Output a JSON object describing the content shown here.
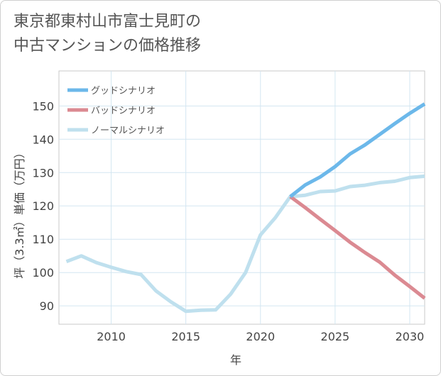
{
  "title": {
    "line1": "東京都東村山市富士見町の",
    "line2": "中古マンションの価格推移"
  },
  "chart_data": {
    "type": "line",
    "xlabel": "年",
    "ylabel": "坪（3.3㎡）単価（万円）",
    "xlim": [
      2006.5,
      2031
    ],
    "ylim": [
      84.5,
      160.5
    ],
    "xticks": [
      2010,
      2015,
      2020,
      2025,
      2030
    ],
    "yticks": [
      90,
      100,
      110,
      120,
      130,
      140,
      150
    ],
    "grid": true,
    "legend_position": "top-left",
    "series": [
      {
        "name": "グッドシナリオ",
        "color": "#6cb8ea",
        "x": [
          2022,
          2023,
          2024,
          2025,
          2026,
          2027,
          2028,
          2029,
          2030,
          2031
        ],
        "y": [
          122.8,
          126.3,
          128.7,
          131.8,
          135.6,
          138.3,
          141.5,
          144.7,
          147.8,
          150.6
        ]
      },
      {
        "name": "バッドシナリオ",
        "color": "#db8a92",
        "x": [
          2022,
          2023,
          2024,
          2025,
          2026,
          2027,
          2028,
          2029,
          2030,
          2031
        ],
        "y": [
          122.8,
          119.5,
          116.0,
          112.6,
          109.1,
          106.0,
          103.1,
          99.2,
          95.8,
          92.3
        ]
      },
      {
        "name": "ノーマルシナリオ",
        "color": "#bfe0ee",
        "x": [
          2007,
          2008,
          2009,
          2010,
          2011,
          2012,
          2013,
          2014,
          2015,
          2016,
          2017,
          2018,
          2019,
          2020,
          2021,
          2022,
          2023,
          2024,
          2025,
          2026,
          2027,
          2028,
          2029,
          2030,
          2031
        ],
        "y": [
          103.3,
          105.0,
          103.0,
          101.6,
          100.3,
          99.4,
          94.5,
          91.2,
          88.4,
          88.7,
          88.8,
          93.5,
          100.0,
          111.3,
          116.5,
          122.8,
          123.2,
          124.3,
          124.5,
          125.8,
          126.2,
          127.0,
          127.4,
          128.5,
          128.9
        ]
      }
    ]
  }
}
